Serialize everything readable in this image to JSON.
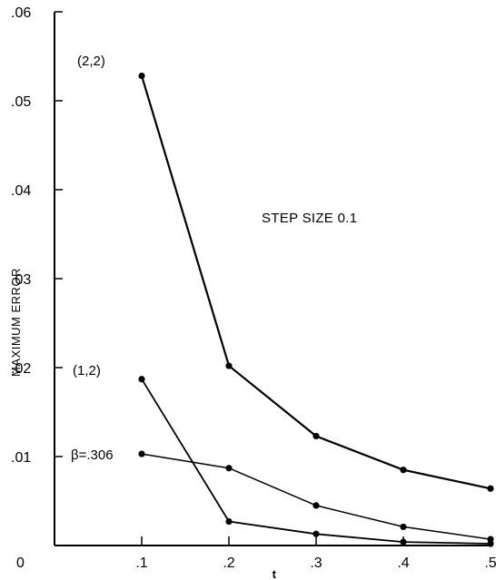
{
  "chart_data": {
    "type": "line",
    "title": "",
    "xlabel": "t",
    "ylabel": "MAXIMUM ERROR",
    "annotation": "STEP SIZE 0.1",
    "xlim": [
      0,
      0.5
    ],
    "ylim": [
      0,
      0.06
    ],
    "x_ticks": [
      0.1,
      0.2,
      0.3,
      0.4,
      0.5
    ],
    "x_tick_labels": [
      ".1",
      ".2",
      ".3",
      ".4",
      ".5"
    ],
    "x_origin_label": "0",
    "y_ticks": [
      0.01,
      0.02,
      0.03,
      0.04,
      0.05,
      0.06
    ],
    "y_tick_labels": [
      ".01",
      ".02",
      ".03",
      ".04",
      ".05",
      ".06"
    ],
    "grid": false,
    "legend": "none",
    "series": [
      {
        "name": "(2,2)",
        "x": [
          0.1,
          0.2,
          0.3,
          0.4,
          0.5
        ],
        "y": [
          0.0528,
          0.0202,
          0.0123,
          0.0085,
          0.0064
        ]
      },
      {
        "name": "(1,2)",
        "x": [
          0.1,
          0.2,
          0.3,
          0.4,
          0.5
        ],
        "y": [
          0.0187,
          0.0027,
          0.0013,
          0.0004,
          0.0002
        ]
      },
      {
        "name": "β=.306",
        "x": [
          0.1,
          0.2,
          0.3,
          0.4,
          0.5
        ],
        "y": [
          0.0103,
          0.0087,
          0.0045,
          0.0021,
          0.0007
        ]
      }
    ]
  }
}
